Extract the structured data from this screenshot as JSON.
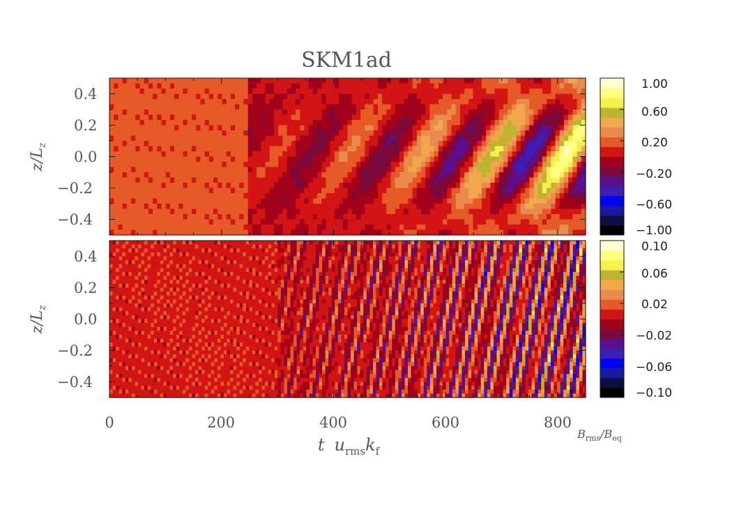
{
  "chart_data": [
    {
      "type": "heatmap",
      "panel": "top",
      "title": "SKM1ad",
      "xlabel": "t u_rms k_f",
      "ylabel": "z/L_z",
      "xlim": [
        0,
        850
      ],
      "ylim": [
        -0.5,
        0.5
      ],
      "xticks": [
        "0",
        "200",
        "400",
        "600",
        "800"
      ],
      "yticks": [
        "−0.4",
        "−0.2",
        "0.0",
        "0.2",
        "0.4"
      ],
      "ytick_values": [
        -0.4,
        -0.2,
        0.0,
        0.2,
        0.4
      ],
      "colorbar": {
        "range": [
          -1.0,
          1.0
        ],
        "tick_labels": [
          "1.00",
          "0.60",
          "0.20",
          "−0.20",
          "−0.60",
          "−1.00"
        ],
        "tick_values": [
          1.0,
          0.6,
          0.2,
          -0.2,
          -0.6,
          -1.0
        ]
      },
      "description_features": "weak uniform field for t<300, growing oscillating dynamo wave pattern later, strong yellow/blue lobes between t=650 and 850"
    },
    {
      "type": "heatmap",
      "panel": "bottom",
      "xlabel": "t u_rms k_f",
      "ylabel": "z/L_z",
      "xlim": [
        0,
        850
      ],
      "ylim": [
        -0.5,
        0.5
      ],
      "xticks": [
        "0",
        "200",
        "400",
        "600",
        "800"
      ],
      "yticks": [
        "−0.4",
        "−0.2",
        "0.0",
        "0.2",
        "0.4"
      ],
      "ytick_values": [
        -0.4,
        -0.2,
        0.0,
        0.2,
        0.4
      ],
      "colorbar": {
        "range": [
          -0.1,
          0.1
        ],
        "tick_labels": [
          "0.10",
          "0.06",
          "0.02",
          "−0.02",
          "−0.06",
          "−0.10"
        ],
        "tick_values": [
          0.1,
          0.06,
          0.02,
          -0.02,
          -0.06,
          -0.1
        ]
      }
    }
  ],
  "axes": {
    "ylabel_main": "z/L",
    "ylabel_sub": "z",
    "xlabel_t": "t",
    "xlabel_u": "u",
    "xlabel_u_sub": "rms",
    "xlabel_k": "k",
    "xlabel_k_sub": "f",
    "cb_num": "B",
    "cb_num_sub": "rms",
    "cb_den": "/B",
    "cb_den_sub": "eq"
  },
  "colormap": [
    "#000000",
    "#0c0f40",
    "#1a1aa0",
    "#0000ff",
    "#3c1eb4",
    "#5a0f8c",
    "#7a0a3c",
    "#a0001a",
    "#d21414",
    "#e65a28",
    "#e98a4f",
    "#f0a84a",
    "#bdb431",
    "#f8f04a",
    "#ffff80",
    "#ffffd2"
  ]
}
